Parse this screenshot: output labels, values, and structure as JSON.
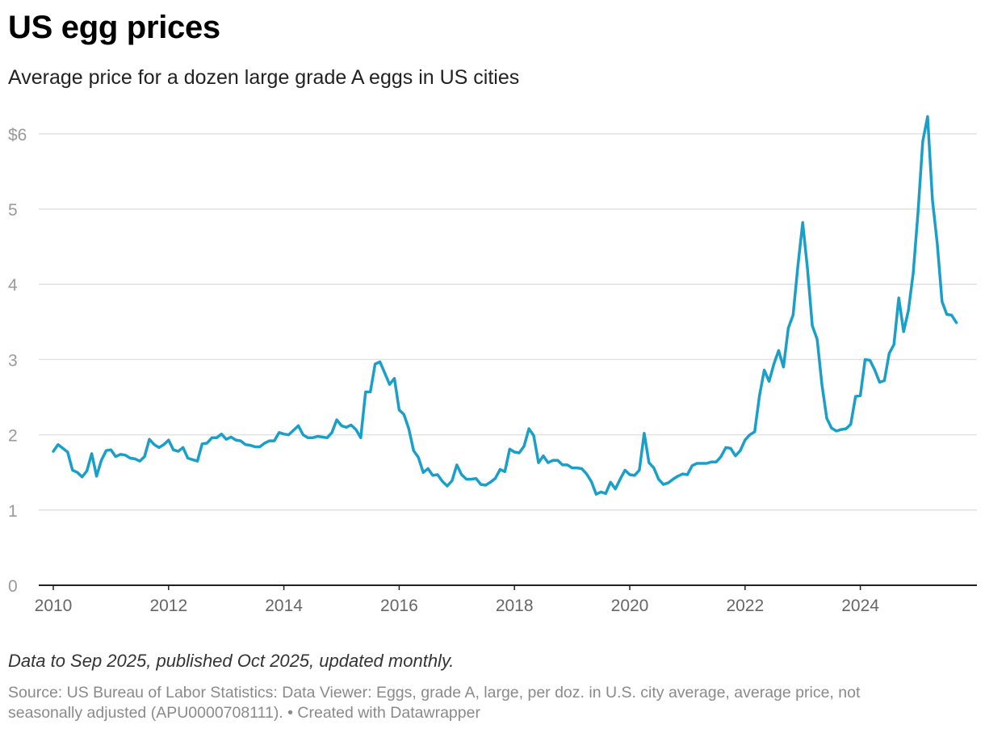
{
  "header": {
    "title": "US egg prices",
    "subtitle": "Average price for a dozen large grade A eggs in US cities"
  },
  "footer": {
    "note": "Data to Sep 2025, published Oct 2025, updated monthly.",
    "source_line1": "Source: US Bureau of Labor Statistics: Data Viewer: Eggs, grade A, large, per doz. in U.S. city average, average price, not",
    "source_line2": "seasonally adjusted (APU0000708111). • Created with Datawrapper"
  },
  "colors": {
    "line": "#1a9fc8",
    "grid": "#e2e2e2",
    "axis": "#222222"
  },
  "chart_data": {
    "type": "line",
    "title": "US egg prices",
    "subtitle": "Average price for a dozen large grade A eggs in US cities",
    "xlabel": "",
    "ylabel": "",
    "ylim": [
      0,
      6.5
    ],
    "xlim": [
      2010.0,
      2025.75
    ],
    "y_ticks": [
      0,
      1,
      2,
      3,
      4,
      5,
      6
    ],
    "y_tick_labels": [
      "0",
      "1",
      "2",
      "3",
      "4",
      "5",
      "$6"
    ],
    "x_ticks": [
      2010,
      2012,
      2014,
      2016,
      2018,
      2020,
      2022,
      2024
    ],
    "x_tick_labels": [
      "2010",
      "2012",
      "2014",
      "2016",
      "2018",
      "2020",
      "2022",
      "2024"
    ],
    "grid": true,
    "series": [
      {
        "name": "Eggs, grade A, large, per doz.",
        "start": "2010-01",
        "frequency": "monthly",
        "values": [
          1.78,
          1.87,
          1.82,
          1.77,
          1.53,
          1.5,
          1.44,
          1.52,
          1.75,
          1.45,
          1.66,
          1.79,
          1.8,
          1.71,
          1.74,
          1.73,
          1.69,
          1.68,
          1.65,
          1.71,
          1.94,
          1.87,
          1.83,
          1.87,
          1.93,
          1.8,
          1.78,
          1.83,
          1.69,
          1.67,
          1.65,
          1.88,
          1.89,
          1.96,
          1.96,
          2.01,
          1.94,
          1.97,
          1.93,
          1.92,
          1.87,
          1.86,
          1.84,
          1.84,
          1.89,
          1.92,
          1.92,
          2.03,
          2.01,
          2.0,
          2.06,
          2.12,
          2.0,
          1.96,
          1.96,
          1.98,
          1.97,
          1.96,
          2.03,
          2.2,
          2.12,
          2.1,
          2.13,
          2.07,
          1.96,
          2.57,
          2.57,
          2.94,
          2.97,
          2.82,
          2.67,
          2.75,
          2.33,
          2.27,
          2.08,
          1.79,
          1.7,
          1.5,
          1.55,
          1.46,
          1.47,
          1.38,
          1.32,
          1.39,
          1.6,
          1.47,
          1.41,
          1.41,
          1.42,
          1.34,
          1.33,
          1.37,
          1.42,
          1.54,
          1.51,
          1.81,
          1.77,
          1.76,
          1.85,
          2.08,
          1.99,
          1.63,
          1.72,
          1.63,
          1.66,
          1.66,
          1.6,
          1.6,
          1.56,
          1.56,
          1.55,
          1.48,
          1.38,
          1.21,
          1.24,
          1.22,
          1.37,
          1.28,
          1.41,
          1.53,
          1.47,
          1.46,
          1.53,
          2.02,
          1.63,
          1.56,
          1.41,
          1.34,
          1.36,
          1.41,
          1.45,
          1.48,
          1.47,
          1.59,
          1.62,
          1.62,
          1.62,
          1.64,
          1.64,
          1.71,
          1.83,
          1.82,
          1.72,
          1.79,
          1.93,
          2.0,
          2.04,
          2.52,
          2.86,
          2.71,
          2.94,
          3.12,
          2.9,
          3.42,
          3.59,
          4.25,
          4.82,
          4.21,
          3.45,
          3.27,
          2.67,
          2.22,
          2.09,
          2.05,
          2.07,
          2.08,
          2.14,
          2.51,
          2.52,
          3.0,
          2.99,
          2.86,
          2.7,
          2.72,
          3.08,
          3.2,
          3.82,
          3.37,
          3.65,
          4.15,
          4.95,
          5.9,
          6.23,
          5.12,
          4.55,
          3.77,
          3.6,
          3.59,
          3.49
        ]
      }
    ]
  }
}
